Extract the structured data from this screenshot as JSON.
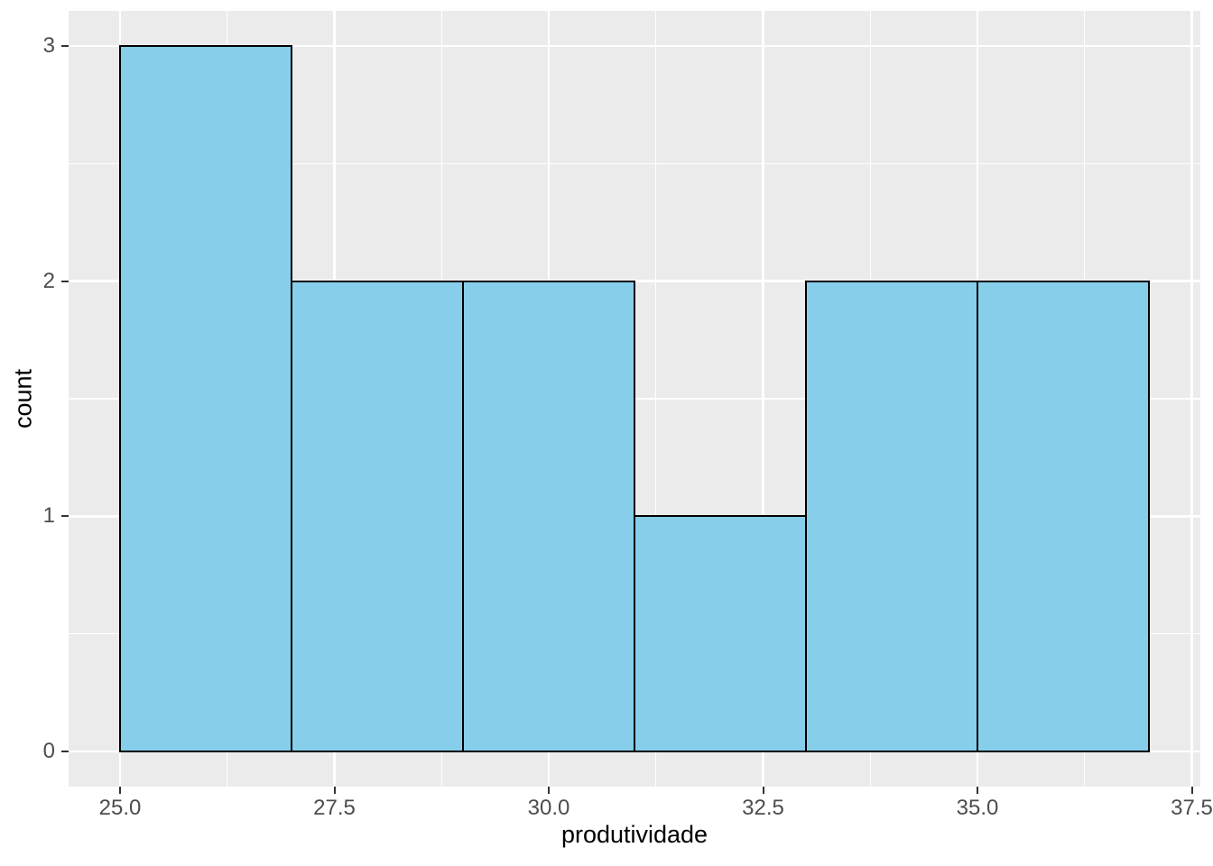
{
  "chart_data": {
    "type": "bar",
    "subtype": "histogram",
    "title": "",
    "xlabel": "produtividade",
    "ylabel": "count",
    "bin_edges": [
      25,
      27,
      29,
      31,
      33,
      35,
      37
    ],
    "counts": [
      3,
      2,
      2,
      1,
      2,
      2
    ],
    "binwidth": 2,
    "x_tick_values": [
      25.0,
      27.5,
      30.0,
      32.5,
      35.0,
      37.5
    ],
    "x_tick_labels": [
      "25.0",
      "27.5",
      "30.0",
      "32.5",
      "35.0",
      "37.5"
    ],
    "y_tick_values": [
      0,
      1,
      2,
      3
    ],
    "y_tick_labels": [
      "0",
      "1",
      "2",
      "3"
    ],
    "x_minor_values": [
      26.25,
      28.75,
      31.25,
      33.75,
      36.25
    ],
    "y_minor_values": [
      0.5,
      1.5,
      2.5
    ],
    "xlim": [
      24.4,
      37.6
    ],
    "ylim": [
      -0.15,
      3.15
    ],
    "grid": "major-and-minor-white",
    "legend": "none",
    "colors": {
      "bar_fill": "#87CEEB",
      "bar_stroke": "#000000",
      "panel_background": "#EBEBEB",
      "gridline": "#FFFFFF",
      "tick_label": "#4D4D4D",
      "axis_title": "#000000",
      "tick_mark": "#333333",
      "figure_background": "#FFFFFF"
    }
  }
}
